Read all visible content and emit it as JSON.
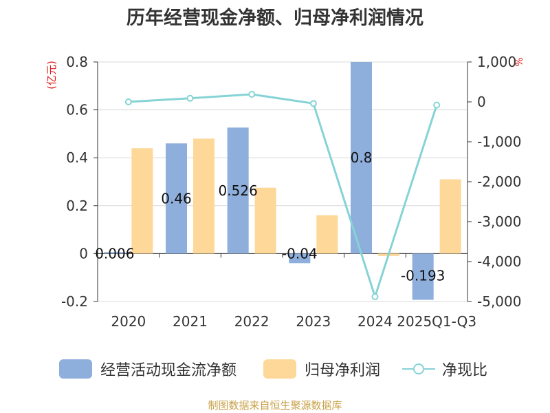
{
  "title": "历年经营现金净额、归母净利润情况",
  "source_note": "制图数据来自恒生聚源数据库",
  "chart_data": {
    "type": "bar",
    "categories": [
      "2020",
      "2021",
      "2022",
      "2023",
      "2024",
      "2025Q1-Q3"
    ],
    "y_left": {
      "unit_label": "(亿元)",
      "ylim": [
        -0.2,
        0.8
      ],
      "ticks": [
        -0.2,
        0,
        0.2,
        0.4,
        0.6,
        0.8
      ],
      "tick_labels": [
        "-0.2",
        "0",
        "0.2",
        "0.4",
        "0.6",
        "0.8"
      ]
    },
    "y_right": {
      "unit_label": "%",
      "ylim": [
        -5000,
        1000
      ],
      "ticks": [
        -5000,
        -4000,
        -3000,
        -2000,
        -1000,
        0,
        1000
      ],
      "tick_labels": [
        "-5,000",
        "-4,000",
        "-3,000",
        "-2,000",
        "-1,000",
        "0",
        "1,000"
      ]
    },
    "series": [
      {
        "name": "经营活动现金流净额",
        "kind": "bar",
        "axis": "left",
        "color": "#8eaedb",
        "values": [
          0.006,
          0.46,
          0.526,
          -0.04,
          0.8,
          -0.193
        ],
        "data_labels": [
          "0.006",
          "0.46",
          "0.526",
          "-0.04",
          "0.8",
          "-0.193"
        ]
      },
      {
        "name": "归母净利润",
        "kind": "bar",
        "axis": "left",
        "color": "#fdd898",
        "values": [
          0.44,
          0.48,
          0.275,
          0.16,
          -0.01,
          0.31
        ]
      },
      {
        "name": "净现比",
        "kind": "line",
        "axis": "right",
        "color": "#86d3d5",
        "values": [
          0,
          90,
          190,
          -40,
          -4880,
          -80
        ]
      }
    ],
    "grid": true,
    "legend_position": "bottom"
  },
  "legend": [
    {
      "label": "经营活动现金流净额",
      "color": "#8eaedb",
      "kind": "bar"
    },
    {
      "label": "归母净利润",
      "color": "#fdd898",
      "kind": "bar"
    },
    {
      "label": "净现比",
      "color": "#86d3d5",
      "kind": "line"
    }
  ]
}
